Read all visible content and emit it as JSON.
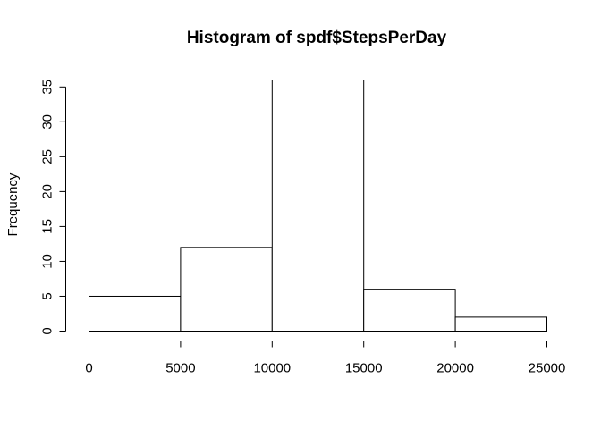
{
  "chart_data": {
    "type": "bar",
    "title": "Histogram of spdf$StepsPerDay",
    "xlabel": "",
    "ylabel": "Frequency",
    "bins": [
      {
        "start": 0,
        "end": 5000,
        "count": 5
      },
      {
        "start": 5000,
        "end": 10000,
        "count": 12
      },
      {
        "start": 10000,
        "end": 15000,
        "count": 36
      },
      {
        "start": 15000,
        "end": 20000,
        "count": 6
      },
      {
        "start": 20000,
        "end": 25000,
        "count": 2
      }
    ],
    "xlim": [
      0,
      25000
    ],
    "ylim": [
      0,
      36
    ],
    "x_ticks": [
      0,
      5000,
      10000,
      15000,
      20000,
      25000
    ],
    "x_tick_labels": [
      "0",
      "5000",
      "10000",
      "15000",
      "20000",
      "25000"
    ],
    "y_ticks": [
      0,
      5,
      10,
      15,
      20,
      25,
      30,
      35
    ],
    "y_tick_labels": [
      "0",
      "5",
      "10",
      "15",
      "20",
      "25",
      "30",
      "35"
    ],
    "colors": {
      "bar_fill": "#ffffff",
      "bar_stroke": "#000000",
      "axis": "#000000",
      "background": "#ffffff"
    },
    "grid": false
  }
}
